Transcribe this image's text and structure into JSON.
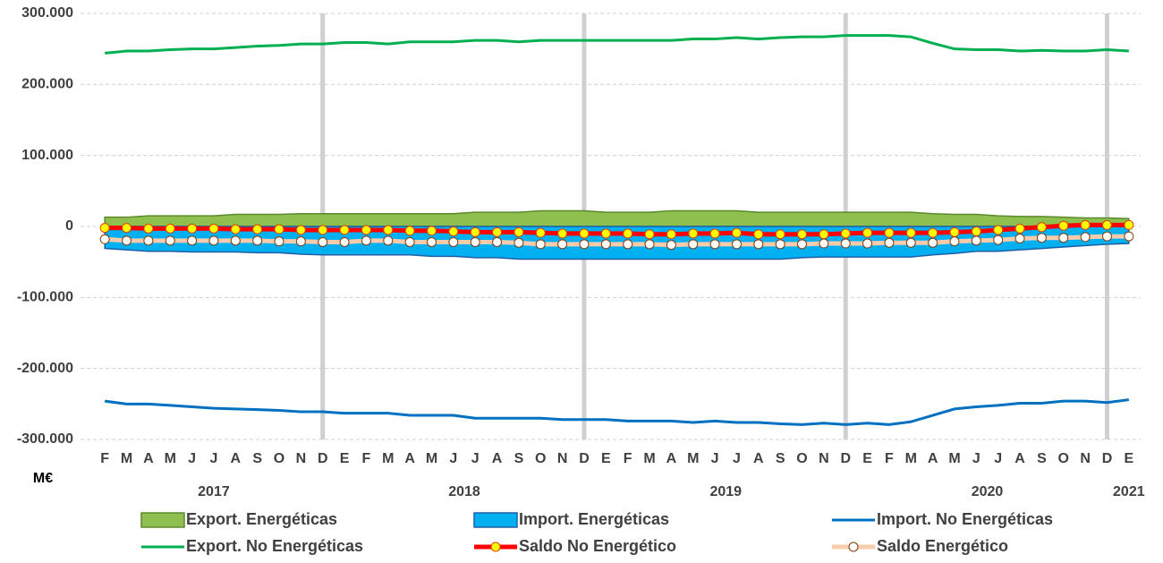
{
  "chart_data": {
    "type": "line",
    "y_unit": "M€",
    "categories": [
      "F",
      "M",
      "A",
      "M",
      "J",
      "J",
      "A",
      "S",
      "O",
      "N",
      "D",
      "E",
      "F",
      "M",
      "A",
      "M",
      "J",
      "J",
      "A",
      "S",
      "O",
      "N",
      "D",
      "E",
      "F",
      "M",
      "A",
      "M",
      "J",
      "J",
      "A",
      "S",
      "O",
      "N",
      "D",
      "E",
      "F",
      "M",
      "A",
      "M",
      "J",
      "J",
      "A",
      "S",
      "O",
      "N",
      "D",
      "E"
    ],
    "years": [
      "2017",
      "2018",
      "2019",
      "2020",
      "2021"
    ],
    "ylim": [
      -300000,
      300000
    ],
    "yticks": [
      {
        "value": -300000,
        "label": "-300.000"
      },
      {
        "value": -200000,
        "label": "-200.000"
      },
      {
        "value": -100000,
        "label": "-100.000"
      },
      0,
      {
        "value": 100000,
        "label": "100.000"
      },
      {
        "value": 200000,
        "label": "200.000"
      },
      {
        "value": 300000,
        "label": "300.000"
      }
    ],
    "grid": true,
    "series": [
      {
        "name": "Export. Energéticas",
        "style": "area",
        "color": "#8fc04f",
        "edge_color": "#5a8a2b",
        "values": [
          13000,
          13000,
          15000,
          15000,
          15000,
          15000,
          17000,
          17000,
          17000,
          18000,
          18000,
          18000,
          18000,
          18000,
          18000,
          18000,
          18000,
          20000,
          20000,
          20000,
          22000,
          22000,
          22000,
          20000,
          20000,
          20000,
          22000,
          22000,
          22000,
          22000,
          20000,
          20000,
          20000,
          20000,
          20000,
          20000,
          20000,
          20000,
          18000,
          17000,
          17000,
          15000,
          14000,
          14000,
          13000,
          12000,
          12000,
          11000
        ]
      },
      {
        "name": "Import. Energéticas",
        "style": "area",
        "color": "#00b0f0",
        "edge_color": "#1f5fa8",
        "values": [
          -31000,
          -33000,
          -35000,
          -35000,
          -36000,
          -36000,
          -36000,
          -37000,
          -37000,
          -39000,
          -40000,
          -40000,
          -40000,
          -40000,
          -40000,
          -42000,
          -42000,
          -44000,
          -44000,
          -46000,
          -46000,
          -46000,
          -46000,
          -46000,
          -46000,
          -46000,
          -46000,
          -46000,
          -46000,
          -46000,
          -46000,
          -46000,
          -44000,
          -43000,
          -43000,
          -43000,
          -43000,
          -43000,
          -40000,
          -38000,
          -35000,
          -35000,
          -33000,
          -31000,
          -29000,
          -27000,
          -25000,
          -24000
        ]
      },
      {
        "name": "Import. No Energéticas",
        "style": "line",
        "color": "#0070c0",
        "values": [
          -246000,
          -250000,
          -250000,
          -252000,
          -254000,
          -256000,
          -257000,
          -258000,
          -259000,
          -261000,
          -261000,
          -263000,
          -263000,
          -263000,
          -266000,
          -266000,
          -266000,
          -270000,
          -270000,
          -270000,
          -270000,
          -272000,
          -272000,
          -272000,
          -274000,
          -274000,
          -274000,
          -276000,
          -274000,
          -276000,
          -276000,
          -278000,
          -279000,
          -277000,
          -279000,
          -277000,
          -279000,
          -275000,
          -266000,
          -257000,
          -254000,
          -252000,
          -249000,
          -249000,
          -246000,
          -246000,
          -248000,
          -244000
        ]
      },
      {
        "name": "Export. No Energéticas",
        "style": "line",
        "color": "#00b050",
        "values": [
          244000,
          247000,
          247000,
          249000,
          250000,
          250000,
          252000,
          254000,
          255000,
          257000,
          257000,
          259000,
          259000,
          257000,
          260000,
          260000,
          260000,
          262000,
          262000,
          260000,
          262000,
          262000,
          262000,
          262000,
          262000,
          262000,
          262000,
          264000,
          264000,
          266000,
          264000,
          266000,
          267000,
          267000,
          269000,
          269000,
          269000,
          267000,
          258000,
          250000,
          249000,
          249000,
          247000,
          248000,
          247000,
          247000,
          249000,
          247000
        ]
      },
      {
        "name": "Saldo No Energético",
        "style": "marker-line",
        "color": "#ff0000",
        "marker_color": "#ffff00",
        "marker_edge": "#e04000",
        "values": [
          -2000,
          -2000,
          -3000,
          -3000,
          -3000,
          -3000,
          -4000,
          -4000,
          -4000,
          -5000,
          -5000,
          -5000,
          -5000,
          -5000,
          -6000,
          -6000,
          -7000,
          -8000,
          -8000,
          -8000,
          -9000,
          -10000,
          -10000,
          -10000,
          -10000,
          -11000,
          -11000,
          -10000,
          -10000,
          -9000,
          -11000,
          -11000,
          -11000,
          -11000,
          -10000,
          -9000,
          -9000,
          -9000,
          -9000,
          -8000,
          -7000,
          -5000,
          -3000,
          -1000,
          1000,
          2000,
          2000,
          2000
        ]
      },
      {
        "name": "Saldo Energético",
        "style": "marker-line",
        "color": "#f8cbad",
        "marker_color": "#ffffff",
        "marker_edge": "#843c0c",
        "values": [
          -18000,
          -20000,
          -20000,
          -20000,
          -20000,
          -20000,
          -20000,
          -20000,
          -21000,
          -21000,
          -22000,
          -22000,
          -20000,
          -20000,
          -22000,
          -22000,
          -22000,
          -22000,
          -22000,
          -23000,
          -25000,
          -25000,
          -25000,
          -25000,
          -25000,
          -25000,
          -26000,
          -25000,
          -25000,
          -25000,
          -25000,
          -25000,
          -25000,
          -24000,
          -24000,
          -24000,
          -23000,
          -23000,
          -23000,
          -21000,
          -20000,
          -19000,
          -17000,
          -16000,
          -16000,
          -15000,
          -14000,
          -14000
        ]
      }
    ]
  }
}
